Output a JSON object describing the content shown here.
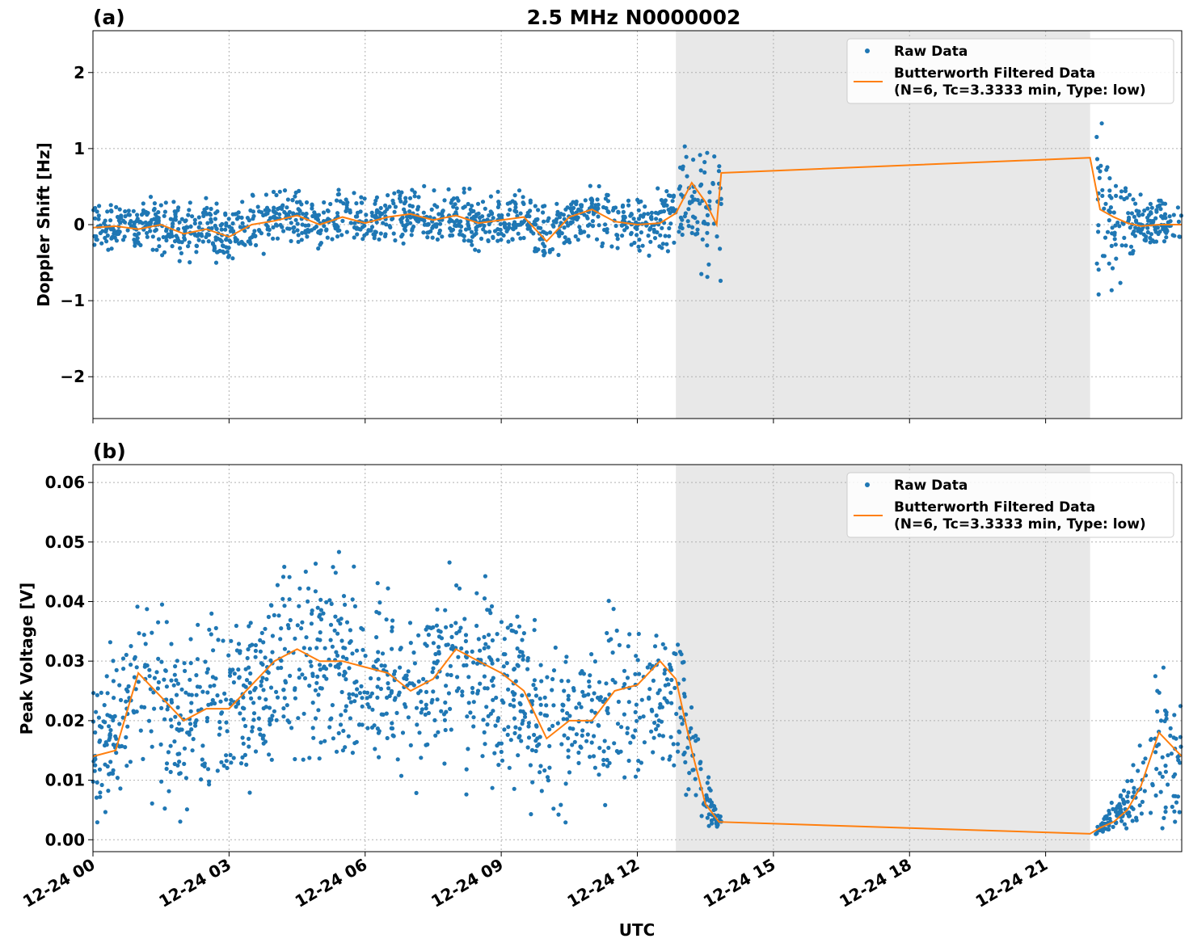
{
  "chart_data": [
    {
      "panel_label": "(a)",
      "type": "scatter",
      "title": "2.5 MHz N0000002",
      "xlabel": "",
      "ylabel": "Doppler Shift [Hz]",
      "xlim": [
        0,
        24
      ],
      "ylim": [
        -2.55,
        2.55
      ],
      "yticks": [
        -2,
        -1,
        0,
        1,
        2
      ],
      "ytick_labels": [
        "−2",
        "−1",
        "0",
        "1",
        "2"
      ],
      "grid": true,
      "legend_position": "top-right",
      "shaded_interval": [
        12.85,
        21.98
      ],
      "colors": {
        "raw": "#1f77b4",
        "filtered": "#ff7f0e",
        "shade": "#e8e8e8"
      },
      "series": [
        {
          "name": "Raw Data",
          "kind": "points",
          "x": [
            0.0,
            0.5,
            1.0,
            1.5,
            2.0,
            2.5,
            3.0,
            3.5,
            4.0,
            4.5,
            5.0,
            5.5,
            6.0,
            6.5,
            7.0,
            7.5,
            8.0,
            8.5,
            9.0,
            9.5,
            10.0,
            10.5,
            11.0,
            11.5,
            12.0,
            12.5,
            12.85,
            13.2,
            13.5,
            13.8,
            22.2,
            22.5,
            22.8,
            23.1,
            23.5,
            24.0
          ],
          "y": [
            0.0,
            -0.02,
            -0.04,
            0.0,
            -0.1,
            -0.05,
            -0.15,
            0.0,
            0.05,
            0.12,
            0.0,
            0.1,
            0.02,
            0.1,
            0.12,
            0.08,
            0.1,
            0.05,
            0.05,
            0.08,
            -0.2,
            0.1,
            0.15,
            0.05,
            0.0,
            0.05,
            0.15,
            0.5,
            0.3,
            0.2,
            0.2,
            0.1,
            0.05,
            0.0,
            0.0,
            0.0
          ],
          "spread": [
            0.28,
            0.28,
            0.3,
            0.32,
            0.34,
            0.34,
            0.34,
            0.32,
            0.3,
            0.3,
            0.3,
            0.3,
            0.3,
            0.3,
            0.3,
            0.28,
            0.28,
            0.28,
            0.3,
            0.3,
            0.35,
            0.3,
            0.32,
            0.3,
            0.3,
            0.35,
            0.45,
            0.6,
            0.75,
            0.8,
            0.95,
            0.8,
            0.55,
            0.35,
            0.3,
            0.28
          ]
        },
        {
          "name": "Butterworth Filtered Data\n(N=6, Tc=3.3333 min, Type: low)",
          "legend_lines": [
            "Butterworth Filtered Data",
            "(N=6, Tc=3.3333 min, Type: low)"
          ],
          "kind": "line",
          "x": [
            0.0,
            0.5,
            1.0,
            1.5,
            2.0,
            2.5,
            3.0,
            3.5,
            4.0,
            4.5,
            5.0,
            5.5,
            6.0,
            6.5,
            7.0,
            7.5,
            8.0,
            8.5,
            9.0,
            9.5,
            10.0,
            10.5,
            11.0,
            11.5,
            12.0,
            12.5,
            12.85,
            13.2,
            13.5,
            13.75,
            13.85,
            21.98,
            22.2,
            22.5,
            22.8,
            23.1,
            23.5,
            24.0
          ],
          "y": [
            -0.04,
            -0.02,
            -0.06,
            0.0,
            -0.12,
            -0.06,
            -0.16,
            0.0,
            0.05,
            0.12,
            0.0,
            0.1,
            0.02,
            0.1,
            0.14,
            0.06,
            0.12,
            0.02,
            0.06,
            0.1,
            -0.22,
            0.1,
            0.2,
            0.04,
            0.0,
            0.02,
            0.15,
            0.55,
            0.3,
            0.0,
            0.68,
            0.88,
            0.2,
            0.1,
            0.02,
            -0.02,
            0.0,
            0.0
          ]
        }
      ]
    },
    {
      "panel_label": "(b)",
      "type": "scatter",
      "title": "",
      "xlabel": "UTC",
      "ylabel": "Peak Voltage [V]",
      "xlim": [
        0,
        24
      ],
      "ylim": [
        -0.002,
        0.063
      ],
      "yticks": [
        0.0,
        0.01,
        0.02,
        0.03,
        0.04,
        0.05,
        0.06
      ],
      "ytick_labels": [
        "0.00",
        "0.01",
        "0.02",
        "0.03",
        "0.04",
        "0.05",
        "0.06"
      ],
      "xticks": [
        0,
        3,
        6,
        9,
        12,
        15,
        18,
        21
      ],
      "xtick_labels": [
        "12-24 00",
        "12-24 03",
        "12-24 06",
        "12-24 09",
        "12-24 12",
        "12-24 15",
        "12-24 18",
        "12-24 21"
      ],
      "grid": true,
      "legend_position": "top-right",
      "shaded_interval": [
        12.85,
        21.98
      ],
      "colors": {
        "raw": "#1f77b4",
        "filtered": "#ff7f0e",
        "shade": "#e8e8e8"
      },
      "series": [
        {
          "name": "Raw Data",
          "kind": "points",
          "x": [
            0.0,
            0.5,
            1.0,
            1.5,
            2.0,
            2.5,
            3.0,
            3.5,
            4.0,
            4.5,
            5.0,
            5.5,
            6.0,
            6.5,
            7.0,
            7.5,
            8.0,
            8.5,
            9.0,
            9.5,
            10.0,
            10.5,
            11.0,
            11.5,
            12.0,
            12.5,
            12.9,
            13.2,
            13.5,
            13.8,
            22.2,
            22.5,
            22.8,
            23.1,
            23.5,
            24.0
          ],
          "y": [
            0.015,
            0.018,
            0.025,
            0.022,
            0.02,
            0.022,
            0.022,
            0.025,
            0.028,
            0.03,
            0.03,
            0.028,
            0.028,
            0.027,
            0.025,
            0.026,
            0.028,
            0.027,
            0.026,
            0.024,
            0.018,
            0.02,
            0.02,
            0.022,
            0.024,
            0.026,
            0.025,
            0.015,
            0.007,
            0.003,
            0.002,
            0.004,
            0.006,
            0.01,
            0.015,
            0.012
          ],
          "spread": [
            0.012,
            0.012,
            0.014,
            0.014,
            0.013,
            0.013,
            0.013,
            0.013,
            0.014,
            0.014,
            0.014,
            0.014,
            0.013,
            0.013,
            0.013,
            0.013,
            0.014,
            0.014,
            0.014,
            0.013,
            0.011,
            0.012,
            0.013,
            0.013,
            0.012,
            0.012,
            0.012,
            0.008,
            0.004,
            0.001,
            0.001,
            0.002,
            0.004,
            0.008,
            0.011,
            0.01
          ]
        },
        {
          "name": "Butterworth Filtered Data\n(N=6, Tc=3.3333 min, Type: low)",
          "legend_lines": [
            "Butterworth Filtered Data",
            "(N=6, Tc=3.3333 min, Type: low)"
          ],
          "kind": "line",
          "x": [
            0.0,
            0.5,
            1.0,
            1.5,
            2.0,
            2.5,
            3.0,
            3.5,
            4.0,
            4.5,
            5.0,
            5.5,
            6.0,
            6.5,
            7.0,
            7.5,
            8.0,
            8.5,
            9.0,
            9.5,
            10.0,
            10.5,
            11.0,
            11.5,
            12.0,
            12.5,
            12.85,
            13.2,
            13.5,
            13.8,
            21.98,
            22.2,
            22.5,
            22.8,
            23.1,
            23.5,
            24.0
          ],
          "y": [
            0.014,
            0.015,
            0.028,
            0.024,
            0.02,
            0.022,
            0.022,
            0.026,
            0.03,
            0.032,
            0.03,
            0.03,
            0.029,
            0.028,
            0.025,
            0.027,
            0.032,
            0.03,
            0.028,
            0.025,
            0.017,
            0.02,
            0.02,
            0.025,
            0.026,
            0.03,
            0.027,
            0.015,
            0.006,
            0.003,
            0.001,
            0.002,
            0.003,
            0.005,
            0.009,
            0.018,
            0.014
          ]
        }
      ]
    }
  ]
}
